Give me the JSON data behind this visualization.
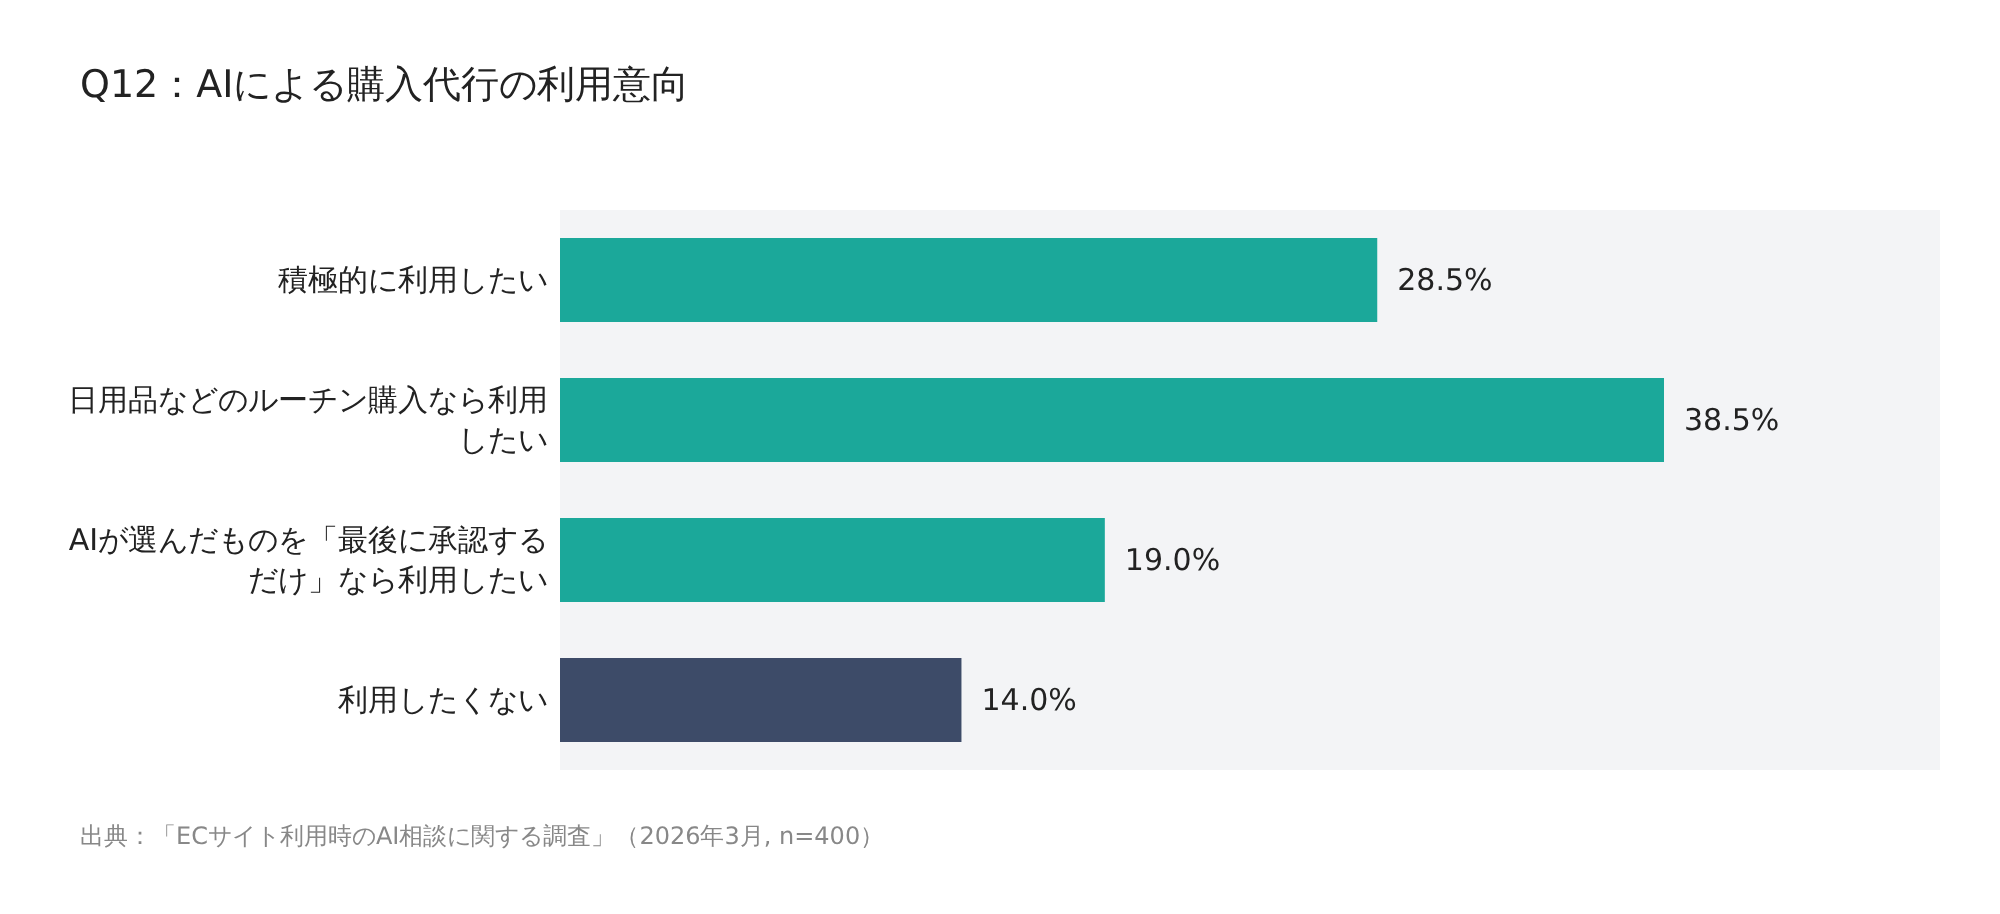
{
  "chart_data": {
    "type": "bar",
    "orientation": "horizontal",
    "title": "Q12：AIによる購入代行の利用意向",
    "categories": [
      "積極的に利用したい",
      "日用品などのルーチン購入なら利用したい",
      "AIが選んだものを「最後に承認するだけ」なら利用したい",
      "利用したくない"
    ],
    "values": [
      28.5,
      38.5,
      19.0,
      14.0
    ],
    "value_labels": [
      "28.5%",
      "38.5%",
      "19.0%",
      "14.0%"
    ],
    "colors": [
      "#1ba89a",
      "#1ba89a",
      "#1ba89a",
      "#3d4b68"
    ],
    "annotations": [
      "出典：「ECサイト利用時のAI相談に関する調査」（2026年3月, n=400）"
    ]
  }
}
